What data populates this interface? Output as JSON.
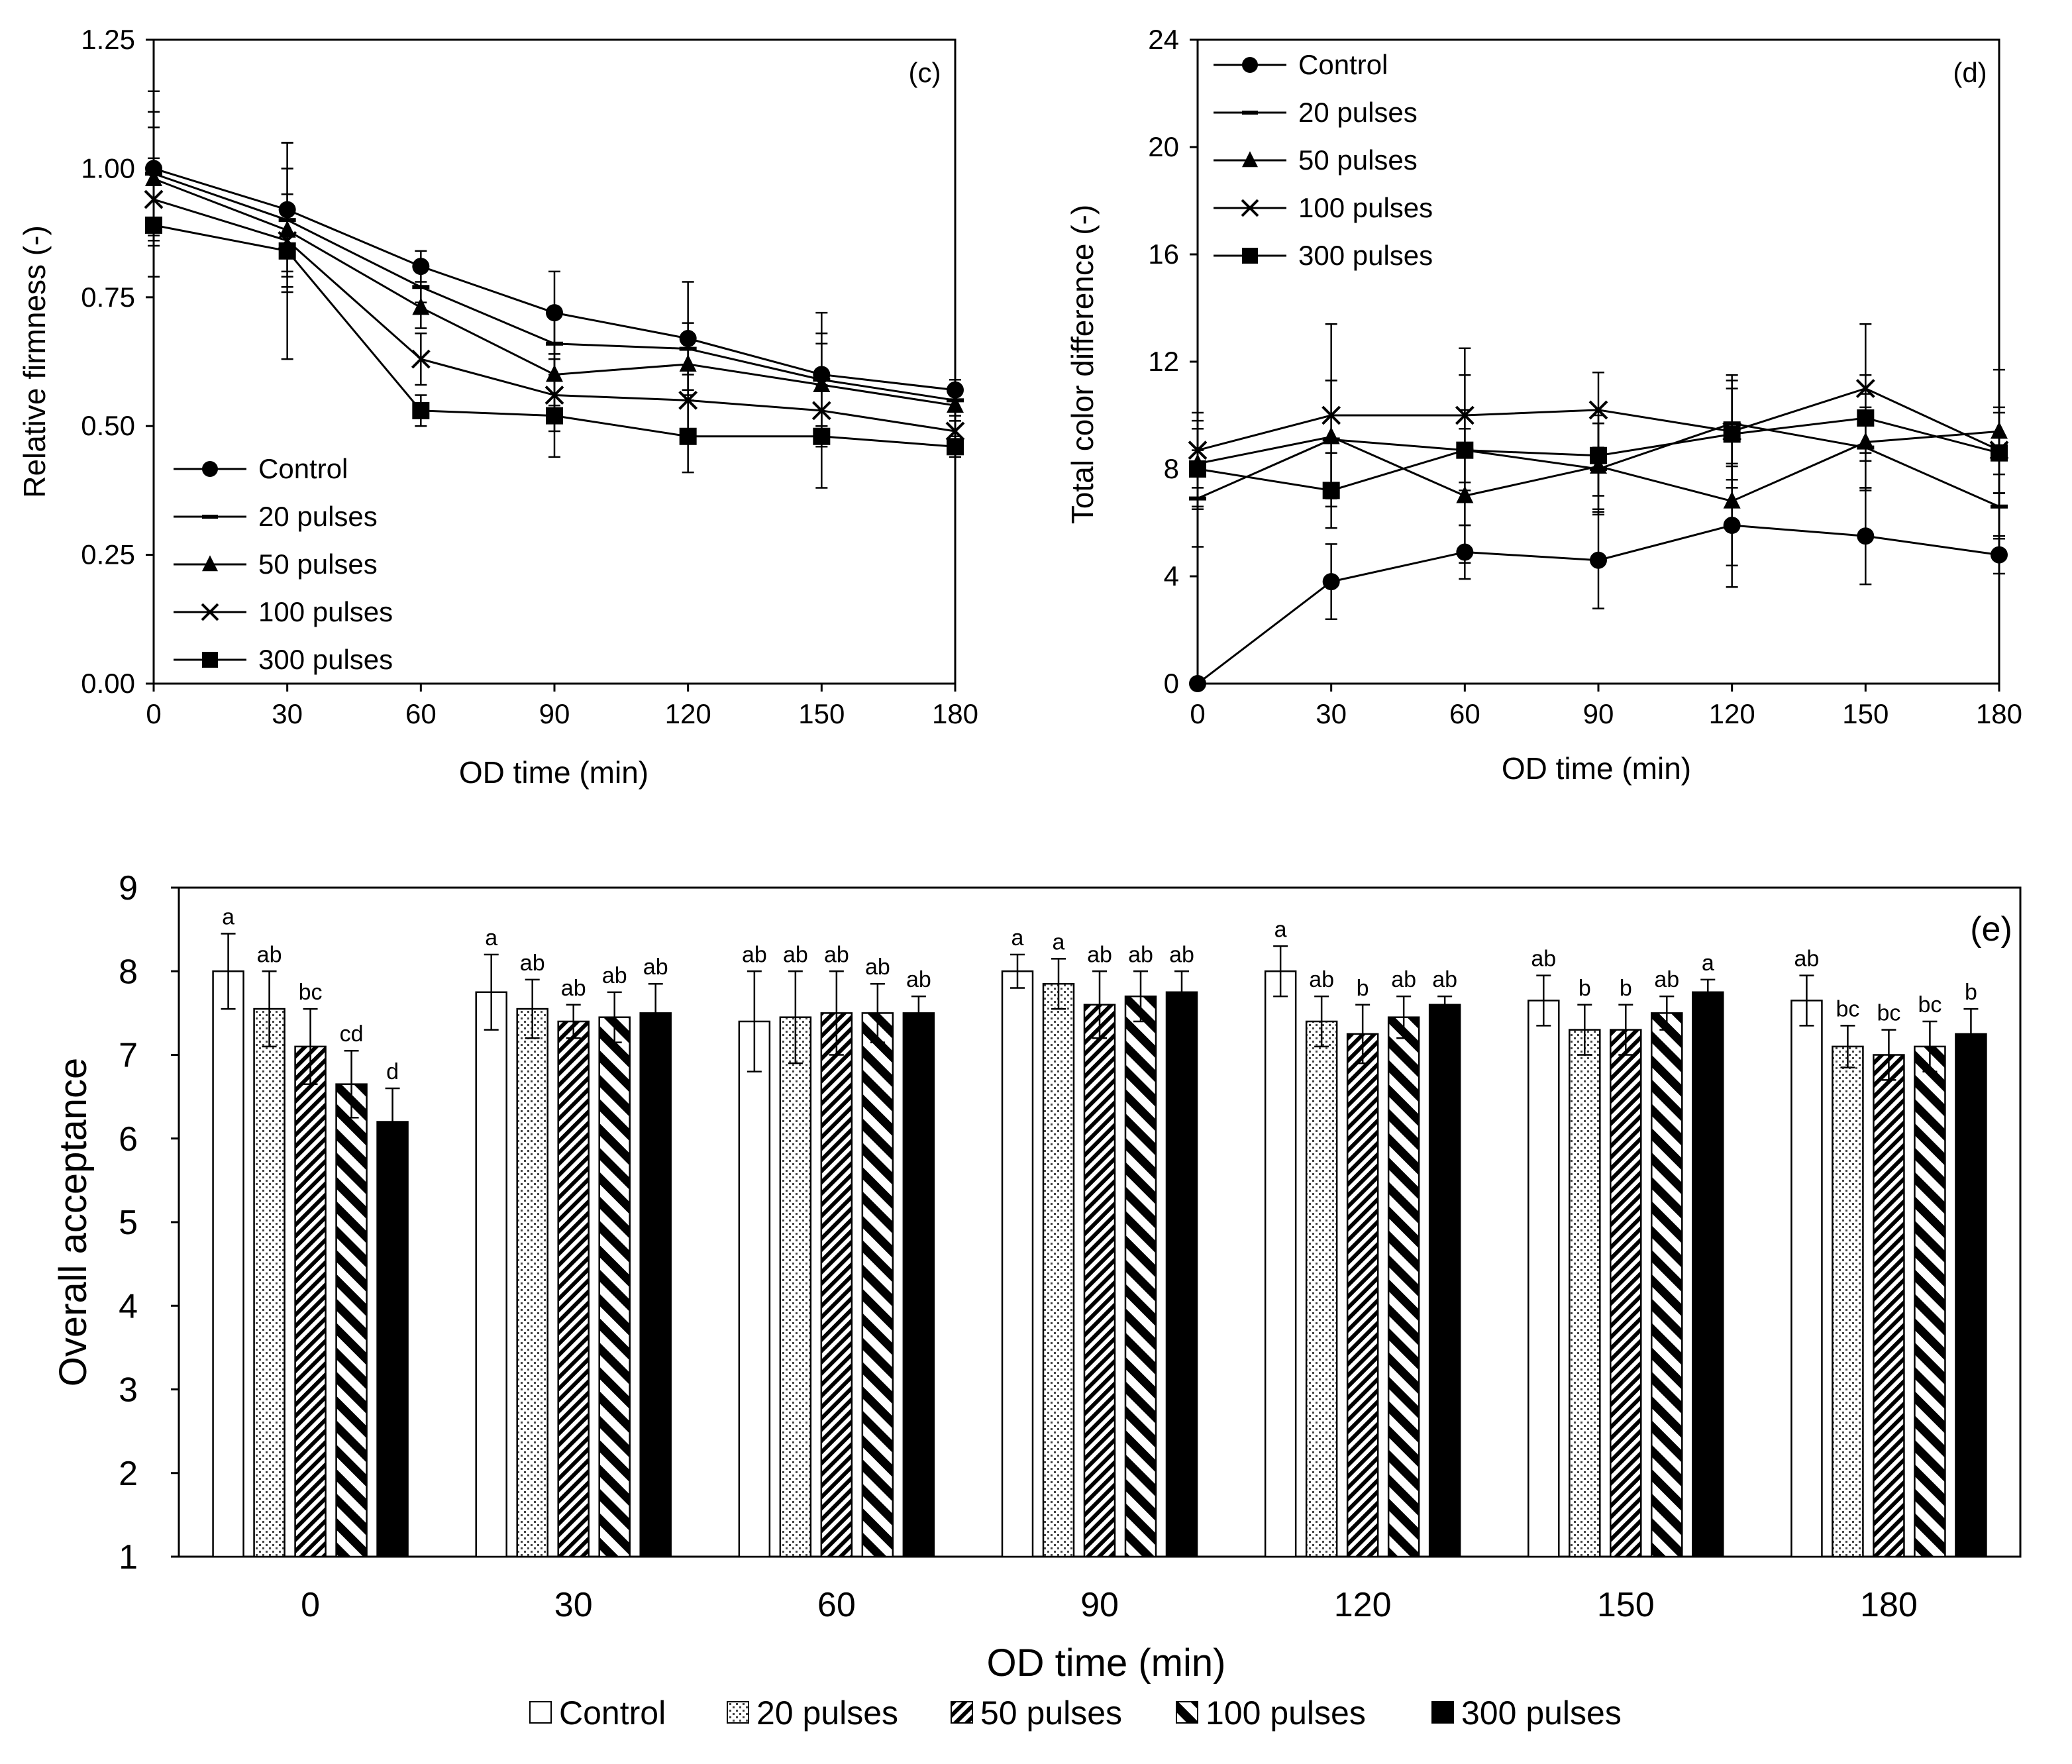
{
  "chart_data": [
    {
      "type": "line",
      "panel_label": "(c)",
      "xlabel": "OD time (min)",
      "ylabel": "Relative firmness (-)",
      "x": [
        0,
        30,
        60,
        90,
        120,
        150,
        180
      ],
      "xticks": [
        "0",
        "30",
        "60",
        "90",
        "120",
        "150",
        "180"
      ],
      "yticks": [
        "0.00",
        "0.25",
        "0.50",
        "0.75",
        "1.00",
        "1.25"
      ],
      "xlim": [
        0,
        180
      ],
      "ylim": [
        0,
        1.25
      ],
      "legend_position": "bottom-left",
      "series": [
        {
          "name": "Control",
          "marker": "circle",
          "values": [
            1.0,
            0.92,
            0.81,
            0.72,
            0.67,
            0.6,
            0.57
          ],
          "errors": [
            0.15,
            0.13,
            0.03,
            0.08,
            0.11,
            0.12,
            0.02
          ]
        },
        {
          "name": "20 pulses",
          "marker": "dash",
          "values": [
            0.99,
            0.9,
            0.77,
            0.66,
            0.65,
            0.59,
            0.55
          ],
          "errors": [
            0.12,
            0.1,
            0.03,
            0.07,
            0.05,
            0.09,
            0.02
          ]
        },
        {
          "name": "50 pulses",
          "marker": "triangle",
          "values": [
            0.98,
            0.88,
            0.73,
            0.6,
            0.62,
            0.58,
            0.54
          ],
          "errors": [
            0.1,
            0.12,
            0.04,
            0.06,
            0.05,
            0.08,
            0.03
          ]
        },
        {
          "name": "100 pulses",
          "marker": "x",
          "values": [
            0.94,
            0.86,
            0.63,
            0.56,
            0.55,
            0.53,
            0.49
          ],
          "errors": [
            0.08,
            0.09,
            0.05,
            0.07,
            0.06,
            0.07,
            0.03
          ]
        },
        {
          "name": "300 pulses",
          "marker": "square",
          "values": [
            0.89,
            0.84,
            0.53,
            0.52,
            0.48,
            0.48,
            0.46
          ],
          "errors": [
            0.1,
            0.21,
            0.03,
            0.08,
            0.07,
            0.1,
            0.02
          ]
        }
      ]
    },
    {
      "type": "line",
      "panel_label": "(d)",
      "xlabel": "OD time (min)",
      "ylabel": "Total color difference (-)",
      "x": [
        0,
        30,
        60,
        90,
        120,
        150,
        180
      ],
      "xticks": [
        "0",
        "30",
        "60",
        "90",
        "120",
        "150",
        "180"
      ],
      "yticks": [
        "0",
        "4",
        "8",
        "12",
        "16",
        "20",
        "24"
      ],
      "xlim": [
        0,
        180
      ],
      "ylim": [
        0,
        24
      ],
      "legend_position": "top-left",
      "series": [
        {
          "name": "Control",
          "marker": "circle",
          "values": [
            0,
            3.8,
            4.9,
            4.6,
            5.9,
            5.5,
            4.8
          ],
          "errors": [
            0,
            1.4,
            1.0,
            1.8,
            2.3,
            1.8,
            0.7
          ]
        },
        {
          "name": "20 pulses",
          "marker": "dash",
          "values": [
            6.9,
            9.1,
            8.7,
            8.0,
            9.7,
            8.8,
            6.6
          ],
          "errors": [
            1.8,
            2.2,
            2.8,
            1.7,
            1.6,
            1.5,
            1.2
          ]
        },
        {
          "name": "50 pulses",
          "marker": "triangle",
          "values": [
            8.2,
            9.2,
            7.0,
            8.1,
            6.8,
            9.0,
            9.4
          ],
          "errors": [
            1.6,
            2.1,
            2.5,
            1.6,
            2.4,
            1.8,
            2.3
          ]
        },
        {
          "name": "100 pulses",
          "marker": "x",
          "values": [
            8.7,
            10.0,
            10.0,
            10.2,
            9.4,
            11.0,
            8.7
          ],
          "errors": [
            1.4,
            3.4,
            2.5,
            1.4,
            2.1,
            2.4,
            1.6
          ]
        },
        {
          "name": "300 pulses",
          "marker": "square",
          "values": [
            8.0,
            7.2,
            8.7,
            8.5,
            9.3,
            9.9,
            8.6
          ],
          "errors": [
            1.5,
            1.4,
            1.5,
            1.5,
            1.7,
            1.6,
            1.5
          ]
        }
      ]
    },
    {
      "type": "bar",
      "panel_label": "(e)",
      "xlabel": "OD time (min)",
      "ylabel": "Overall acceptance",
      "categories": [
        "0",
        "30",
        "60",
        "90",
        "120",
        "150",
        "180"
      ],
      "yticks": [
        "1",
        "2",
        "3",
        "4",
        "5",
        "6",
        "7",
        "8",
        "9"
      ],
      "ylim": [
        1,
        9
      ],
      "legend_position": "bottom-center",
      "series": [
        {
          "name": "Control",
          "pattern": "white",
          "values": [
            8.0,
            7.75,
            7.4,
            8.0,
            8.0,
            7.65,
            7.65
          ],
          "errors": [
            0.45,
            0.45,
            0.6,
            0.2,
            0.3,
            0.3,
            0.3
          ],
          "letters": [
            "a",
            "a",
            "ab",
            "a",
            "a",
            "ab",
            "ab"
          ]
        },
        {
          "name": "20 pulses",
          "pattern": "dots",
          "values": [
            7.55,
            7.55,
            7.45,
            7.85,
            7.4,
            7.3,
            7.1
          ],
          "errors": [
            0.45,
            0.35,
            0.55,
            0.3,
            0.3,
            0.3,
            0.25
          ],
          "letters": [
            "ab",
            "ab",
            "ab",
            "a",
            "ab",
            "b",
            "bc"
          ]
        },
        {
          "name": "50 pulses",
          "pattern": "dense-diag",
          "values": [
            7.1,
            7.4,
            7.5,
            7.6,
            7.25,
            7.3,
            7.0
          ],
          "errors": [
            0.45,
            0.2,
            0.5,
            0.4,
            0.35,
            0.3,
            0.3
          ],
          "letters": [
            "bc",
            "ab",
            "ab",
            "ab",
            "b",
            "b",
            "bc"
          ]
        },
        {
          "name": "100 pulses",
          "pattern": "wide-diag",
          "values": [
            6.65,
            7.45,
            7.5,
            7.7,
            7.45,
            7.5,
            7.1
          ],
          "errors": [
            0.4,
            0.3,
            0.35,
            0.3,
            0.25,
            0.2,
            0.3
          ],
          "letters": [
            "cd",
            "ab",
            "ab",
            "ab",
            "ab",
            "ab",
            "bc"
          ]
        },
        {
          "name": "300 pulses",
          "pattern": "black",
          "values": [
            6.2,
            7.5,
            7.5,
            7.75,
            7.6,
            7.75,
            7.25
          ],
          "errors": [
            0.4,
            0.35,
            0.2,
            0.25,
            0.1,
            0.15,
            0.3
          ],
          "letters": [
            "d",
            "ab",
            "ab",
            "ab",
            "ab",
            "a",
            "b"
          ]
        }
      ]
    }
  ]
}
